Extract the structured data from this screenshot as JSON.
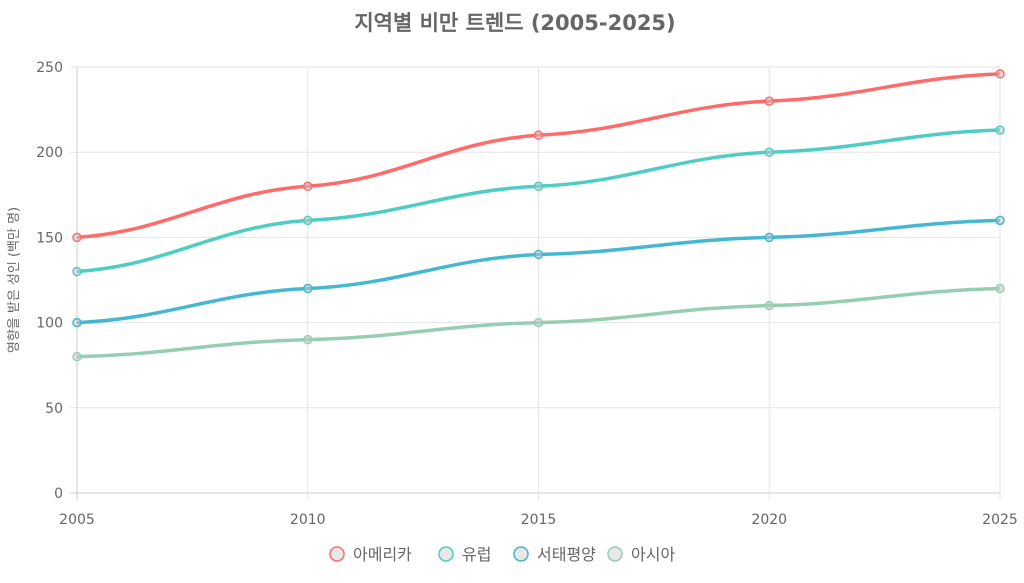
{
  "chart_data": {
    "type": "line",
    "title": "지역별 비만 트렌드 (2005-2025)",
    "xlabel": "",
    "ylabel": "영향을 받은 성인 (백만 명)",
    "x": [
      "2005",
      "2010",
      "2015",
      "2020",
      "2025"
    ],
    "ylim": [
      0,
      250
    ],
    "yticks": [
      "0",
      "50",
      "100",
      "150",
      "200",
      "250"
    ],
    "grid": true,
    "legend": "bottom",
    "series": [
      {
        "name": "아메리카",
        "color": "#ff6b6b",
        "values": [
          150,
          180,
          210,
          230,
          246
        ]
      },
      {
        "name": "유럽",
        "color": "#4ecdc4",
        "values": [
          130,
          160,
          180,
          200,
          213
        ]
      },
      {
        "name": "서태평양",
        "color": "#45b7d1",
        "values": [
          100,
          120,
          140,
          150,
          160
        ]
      },
      {
        "name": "아시아",
        "color": "#96ceb4",
        "values": [
          80,
          90,
          100,
          110,
          120
        ]
      }
    ]
  }
}
